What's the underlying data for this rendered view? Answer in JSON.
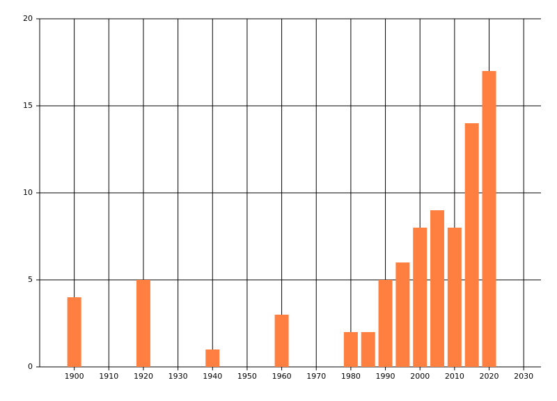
{
  "chart_data": {
    "type": "bar",
    "x": [
      1900,
      1920,
      1940,
      1960,
      1980,
      1985,
      1990,
      1995,
      2000,
      2005,
      2010,
      2015,
      2020
    ],
    "values": [
      4,
      5,
      1,
      3,
      2,
      2,
      5,
      6,
      8,
      9,
      8,
      14,
      17
    ],
    "color": "#ff7f40",
    "xlim": [
      1890,
      2035
    ],
    "xticks": [
      1900,
      1910,
      1920,
      1930,
      1940,
      1950,
      1960,
      1970,
      1980,
      1990,
      2000,
      2010,
      2020,
      2030
    ],
    "ylim": [
      0,
      20
    ],
    "yticks": [
      0,
      5,
      10,
      15,
      20
    ],
    "grid": true
  }
}
